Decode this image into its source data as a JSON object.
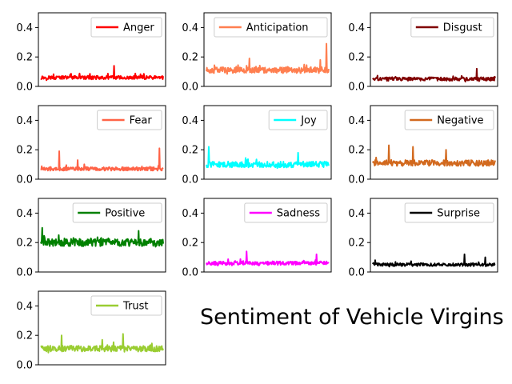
{
  "figure": {
    "title": "Sentiment of Vehicle Virgins"
  },
  "chart_data": [
    {
      "type": "line",
      "series": [
        {
          "name": "Anger",
          "color": "#ff0000",
          "base": 0.06,
          "amp": 0.012,
          "spikes": [
            [
              0.6,
              0.14
            ]
          ]
        }
      ],
      "ylim": [
        0,
        0.5
      ],
      "yticks": [
        0.0,
        0.2,
        0.4
      ],
      "legend": "top-right"
    },
    {
      "type": "line",
      "series": [
        {
          "name": "Anticipation",
          "color": "#ff7f50",
          "base": 0.11,
          "amp": 0.02,
          "spikes": [
            [
              0.98,
              0.29
            ],
            [
              0.93,
              0.18
            ],
            [
              0.35,
              0.19
            ]
          ]
        }
      ],
      "ylim": [
        0,
        0.5
      ],
      "yticks": [
        0.0,
        0.2,
        0.4
      ],
      "legend": "top-right"
    },
    {
      "type": "line",
      "series": [
        {
          "name": "Disgust",
          "color": "#800000",
          "base": 0.05,
          "amp": 0.012,
          "spikes": [
            [
              0.85,
              0.12
            ]
          ]
        }
      ],
      "ylim": [
        0,
        0.5
      ],
      "yticks": [
        0.0,
        0.2,
        0.4
      ],
      "legend": "top-right"
    },
    {
      "type": "line",
      "series": [
        {
          "name": "Fear",
          "color": "#ff6347",
          "base": 0.07,
          "amp": 0.012,
          "spikes": [
            [
              0.15,
              0.19
            ],
            [
              0.97,
              0.21
            ],
            [
              0.3,
              0.13
            ]
          ]
        }
      ],
      "ylim": [
        0,
        0.5
      ],
      "yticks": [
        0.0,
        0.2,
        0.4
      ],
      "legend": "top-right"
    },
    {
      "type": "line",
      "series": [
        {
          "name": "Joy",
          "color": "#00ffff",
          "base": 0.1,
          "amp": 0.02,
          "spikes": [
            [
              0.02,
              0.22
            ],
            [
              0.75,
              0.18
            ]
          ]
        }
      ],
      "ylim": [
        0,
        0.5
      ],
      "yticks": [
        0.0,
        0.2,
        0.4
      ],
      "legend": "top-right"
    },
    {
      "type": "line",
      "series": [
        {
          "name": "Negative",
          "color": "#d2691e",
          "base": 0.11,
          "amp": 0.02,
          "spikes": [
            [
              0.13,
              0.23
            ],
            [
              0.33,
              0.22
            ],
            [
              0.6,
              0.2
            ]
          ]
        }
      ],
      "ylim": [
        0,
        0.5
      ],
      "yticks": [
        0.0,
        0.2,
        0.4
      ],
      "legend": "top-right"
    },
    {
      "type": "line",
      "series": [
        {
          "name": "Positive",
          "color": "#008000",
          "base": 0.2,
          "amp": 0.025,
          "spikes": [
            [
              0.01,
              0.3
            ],
            [
              0.8,
              0.28
            ]
          ]
        }
      ],
      "ylim": [
        0,
        0.5
      ],
      "yticks": [
        0.0,
        0.2,
        0.4
      ],
      "legend": "top-right"
    },
    {
      "type": "line",
      "series": [
        {
          "name": "Sadness",
          "color": "#ff00ff",
          "base": 0.06,
          "amp": 0.012,
          "spikes": [
            [
              0.33,
              0.14
            ],
            [
              0.9,
              0.12
            ]
          ]
        }
      ],
      "ylim": [
        0,
        0.5
      ],
      "yticks": [
        0.0,
        0.2,
        0.4
      ],
      "legend": "top-right"
    },
    {
      "type": "line",
      "series": [
        {
          "name": "Surprise",
          "color": "#000000",
          "base": 0.05,
          "amp": 0.01,
          "spikes": [
            [
              0.02,
              0.08
            ],
            [
              0.75,
              0.12
            ],
            [
              0.92,
              0.1
            ]
          ]
        }
      ],
      "ylim": [
        0,
        0.5
      ],
      "yticks": [
        0.0,
        0.2,
        0.4
      ],
      "legend": "top-right"
    },
    {
      "type": "line",
      "series": [
        {
          "name": "Trust",
          "color": "#9acd32",
          "base": 0.11,
          "amp": 0.02,
          "spikes": [
            [
              0.17,
              0.2
            ],
            [
              0.67,
              0.21
            ],
            [
              0.5,
              0.17
            ]
          ]
        }
      ],
      "ylim": [
        0,
        0.5
      ],
      "yticks": [
        0.0,
        0.2,
        0.4
      ],
      "legend": "top-right"
    }
  ]
}
